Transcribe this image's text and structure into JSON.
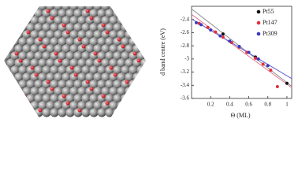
{
  "chart_data": {
    "type": "scatter",
    "y_label": "d band centre (eV)",
    "x_label": "Θ (ML)",
    "xlim": [
      0,
      1.05
    ],
    "ylim": [
      -3.6,
      -2.2
    ],
    "xticks": [
      0.2,
      0.4,
      0.6,
      0.8,
      1
    ],
    "yticks": [
      -2.4,
      -2.6,
      -2.8,
      -3,
      -3.2,
      -3.4,
      -3.6
    ],
    "legend": "upper right",
    "fit_lines": true,
    "series": [
      {
        "name": "Pt55",
        "color": "#111111",
        "line_color": "#8a8f95",
        "x": [
          0.33,
          0.67,
          1
        ],
        "values": [
          -2.62,
          -2.97,
          -3.37
        ]
      },
      {
        "name": "Pt147",
        "color": "#e0303a",
        "line_color": "#e07a8a",
        "x": [
          0.08,
          0.17,
          0.25,
          0.33,
          0.42,
          0.5,
          0.58,
          0.67,
          0.75,
          0.83,
          0.9
        ],
        "values": [
          -2.46,
          -2.52,
          -2.59,
          -2.67,
          -2.75,
          -2.82,
          -2.9,
          -2.99,
          -3.08,
          -3.17,
          -3.42
        ]
      },
      {
        "name": "Pt309",
        "color": "#3a3ac0",
        "line_color": "#6060d0",
        "x": [
          0.05,
          0.1,
          0.2,
          0.3,
          0.4,
          0.5,
          0.6,
          0.7,
          0.8
        ],
        "values": [
          -2.45,
          -2.48,
          -2.56,
          -2.65,
          -2.73,
          -2.81,
          -2.9,
          -3.0,
          -3.1
        ]
      }
    ]
  }
}
